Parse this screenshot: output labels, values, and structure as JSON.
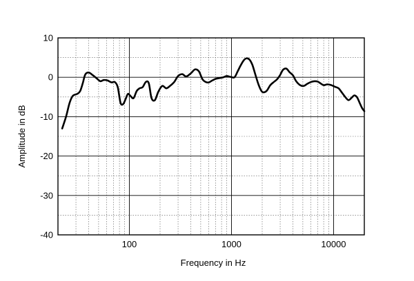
{
  "chart_data": {
    "type": "line",
    "xlabel": "Frequency in Hz",
    "ylabel": "Amplitude in dB",
    "x_scale": "log",
    "xlim": [
      20,
      20000
    ],
    "ylim": [
      -40,
      10
    ],
    "x_ticks": [
      {
        "value": 100,
        "label": "100"
      },
      {
        "value": 1000,
        "label": "1000"
      },
      {
        "value": 10000,
        "label": "10000"
      }
    ],
    "y_ticks": [
      {
        "value": 10,
        "label": "10"
      },
      {
        "value": 0,
        "label": "0"
      },
      {
        "value": -10,
        "label": "-10"
      },
      {
        "value": -20,
        "label": "-20"
      },
      {
        "value": -30,
        "label": "-30"
      },
      {
        "value": -40,
        "label": "-40"
      }
    ],
    "grid": true,
    "line_color": "#000000",
    "series": [
      {
        "x": [
          22,
          24,
          26,
          28,
          31,
          33,
          35,
          37,
          40,
          44,
          48,
          52,
          56,
          61,
          67,
          72,
          77,
          82,
          87,
          92,
          97,
          103,
          110,
          118,
          126,
          135,
          145,
          155,
          165,
          178,
          192,
          210,
          230,
          250,
          275,
          300,
          330,
          360,
          400,
          440,
          480,
          520,
          560,
          600,
          650,
          700,
          760,
          830,
          900,
          980,
          1070,
          1150,
          1230,
          1320,
          1400,
          1500,
          1600,
          1700,
          1850,
          2000,
          2200,
          2400,
          2600,
          2800,
          3000,
          3200,
          3450,
          3700,
          4000,
          4300,
          4700,
          5100,
          5500,
          6000,
          6500,
          7000,
          7500,
          8000,
          8700,
          9500,
          10300,
          11200,
          12000,
          13000,
          14000,
          15000,
          16000,
          17000,
          18000,
          19000,
          20000
        ],
        "y": [
          -13,
          -10,
          -6.5,
          -4.7,
          -4.2,
          -3.5,
          -1.5,
          0.7,
          1.2,
          0.5,
          -0.3,
          -1,
          -0.7,
          -0.8,
          -1.3,
          -1.2,
          -2.5,
          -6.5,
          -6.8,
          -5.5,
          -4.2,
          -4.8,
          -5.3,
          -3.5,
          -2.8,
          -2.5,
          -1.2,
          -1.5,
          -5.3,
          -5.8,
          -3.7,
          -2.2,
          -2.8,
          -2.2,
          -1.2,
          0.3,
          0.8,
          0.2,
          1,
          2,
          1.5,
          -0.5,
          -1.2,
          -1.3,
          -0.8,
          -0.4,
          -0.2,
          0,
          0.3,
          0.1,
          0,
          1.5,
          3,
          4.3,
          4.8,
          4.5,
          3.2,
          1,
          -2,
          -3.7,
          -3.5,
          -2,
          -1.2,
          -0.5,
          0.6,
          1.9,
          2.2,
          1.3,
          0.5,
          -1,
          -2,
          -2.2,
          -1.7,
          -1.2,
          -1,
          -1.1,
          -1.6,
          -2,
          -1.8,
          -2,
          -2.4,
          -2.8,
          -3.8,
          -5,
          -5.8,
          -5.2,
          -4.6,
          -5.1,
          -6.5,
          -7.8,
          -8.6
        ]
      }
    ]
  }
}
